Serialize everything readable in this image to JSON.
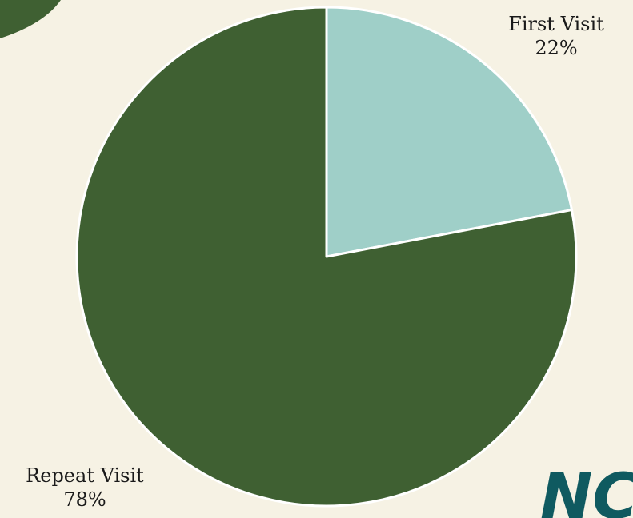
{
  "chart_data": {
    "type": "pie",
    "slices": [
      {
        "label": "First Visit",
        "value": 22,
        "value_label": "22%",
        "color": "#9fcfc8"
      },
      {
        "label": "Repeat Visit",
        "value": 78,
        "value_label": "78%",
        "color": "#3f6032"
      }
    ],
    "start_angle": "12 o'clock",
    "direction": "clockwise",
    "slice_border_color": "#ffffff"
  },
  "decor": {
    "corner_shape_color": "#3f6032",
    "logo_text": "NC",
    "logo_color": "#0f5a60"
  }
}
